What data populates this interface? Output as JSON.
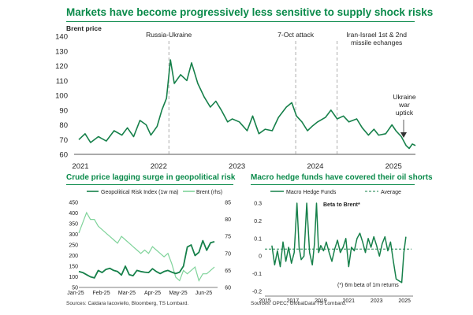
{
  "title": "Markets have become progressively less sensitive to supply shock risks",
  "colors": {
    "dark_green": "#16804a",
    "light_green": "#7fd39a",
    "title_green": "#0a8a4a",
    "avg_line": "#16804a"
  },
  "chart_data": [
    {
      "type": "line",
      "ylabel": "Brent price",
      "ylim": [
        60,
        140
      ],
      "yticks": [
        "60",
        "70",
        "80",
        "90",
        "100",
        "110",
        "120",
        "130",
        "140"
      ],
      "xlim": [
        2021.0,
        2025.3
      ],
      "xticks": [
        {
          "label": "2021",
          "x": 2021.0
        },
        {
          "label": "2022",
          "x": 2022.0
        },
        {
          "label": "2023",
          "x": 2023.0
        },
        {
          "label": "2024",
          "x": 2024.0
        },
        {
          "label": "2025",
          "x": 2025.0
        }
      ],
      "series": [
        {
          "name": "Brent",
          "points": [
            [
              2021.0,
              70
            ],
            [
              2021.08,
              74
            ],
            [
              2021.15,
              68
            ],
            [
              2021.25,
              72
            ],
            [
              2021.35,
              69
            ],
            [
              2021.45,
              76
            ],
            [
              2021.55,
              73
            ],
            [
              2021.62,
              78
            ],
            [
              2021.7,
              72
            ],
            [
              2021.78,
              83
            ],
            [
              2021.86,
              80
            ],
            [
              2021.92,
              73
            ],
            [
              2022.0,
              79
            ],
            [
              2022.06,
              90
            ],
            [
              2022.12,
              98
            ],
            [
              2022.17,
              124
            ],
            [
              2022.22,
              108
            ],
            [
              2022.3,
              114
            ],
            [
              2022.38,
              110
            ],
            [
              2022.44,
              122
            ],
            [
              2022.52,
              108
            ],
            [
              2022.6,
              99
            ],
            [
              2022.68,
              92
            ],
            [
              2022.75,
              96
            ],
            [
              2022.82,
              90
            ],
            [
              2022.9,
              82
            ],
            [
              2022.96,
              84
            ],
            [
              2023.05,
              82
            ],
            [
              2023.15,
              76
            ],
            [
              2023.22,
              86
            ],
            [
              2023.3,
              74
            ],
            [
              2023.38,
              77
            ],
            [
              2023.47,
              76
            ],
            [
              2023.55,
              85
            ],
            [
              2023.65,
              92
            ],
            [
              2023.72,
              95
            ],
            [
              2023.78,
              86
            ],
            [
              2023.85,
              82
            ],
            [
              2023.92,
              76
            ],
            [
              2023.98,
              79
            ],
            [
              2024.05,
              82
            ],
            [
              2024.15,
              85
            ],
            [
              2024.22,
              90
            ],
            [
              2024.3,
              84
            ],
            [
              2024.38,
              86
            ],
            [
              2024.45,
              82
            ],
            [
              2024.55,
              84
            ],
            [
              2024.62,
              78
            ],
            [
              2024.7,
              73
            ],
            [
              2024.77,
              77
            ],
            [
              2024.83,
              73
            ],
            [
              2024.92,
              74
            ],
            [
              2025.0,
              80
            ],
            [
              2025.05,
              76
            ],
            [
              2025.12,
              72
            ],
            [
              2025.18,
              66
            ],
            [
              2025.22,
              64
            ],
            [
              2025.26,
              67
            ],
            [
              2025.3,
              66
            ]
          ]
        }
      ],
      "annotations": [
        {
          "label": "Russia-Ukraine",
          "x": 2022.15
        },
        {
          "label": "7-Oct attack",
          "x": 2023.77
        },
        {
          "label": "Iran-Israel 1st & 2nd",
          "label2": "missile echanges",
          "x": 2024.3
        }
      ],
      "callout": {
        "lines": [
          "Ukraine",
          "war",
          "uptick"
        ]
      }
    },
    {
      "type": "line",
      "title": "Crude price lagging surge in geopolitical risk",
      "ylim_left": [
        50,
        450
      ],
      "ylim_right": [
        60,
        85
      ],
      "yticks_left": [
        "50",
        "100",
        "150",
        "200",
        "250",
        "300",
        "350",
        "400",
        "450"
      ],
      "yticks_right": [
        "60",
        "65",
        "70",
        "75",
        "80",
        "85"
      ],
      "xticks": [
        "Jan-25",
        "Feb-25",
        "Mar-25",
        "Apr-25",
        "May-25",
        "Jun-25"
      ],
      "legend": [
        "Geopolitical Risk Index (1w ma)",
        "Brent (rhs)"
      ],
      "series": [
        {
          "name": "Geopolitical Risk Index (1w ma)",
          "axis": "left",
          "values": [
            125,
            120,
            110,
            100,
            95,
            130,
            120,
            135,
            140,
            130,
            125,
            108,
            150,
            110,
            105,
            130,
            125,
            122,
            120,
            138,
            125,
            115,
            125,
            130,
            122,
            115,
            122,
            150,
            240,
            250,
            200,
            215,
            270,
            225,
            260,
            265
          ]
        },
        {
          "name": "Brent (rhs)",
          "axis": "right",
          "values": [
            76,
            79,
            82,
            80,
            80,
            78,
            77,
            76,
            75,
            74,
            73,
            75,
            74,
            73,
            72,
            71,
            70,
            71,
            70,
            72,
            71,
            70,
            69,
            70,
            67,
            63,
            62,
            65,
            64,
            65,
            66,
            62,
            64,
            64,
            65,
            66
          ]
        }
      ]
    },
    {
      "type": "line",
      "title": "Macro hedge funds have covered their oil shorts",
      "ylim": [
        -0.2,
        0.3
      ],
      "yticks": [
        "-0.2",
        "-0.1",
        "0",
        "0.1",
        "0.2",
        "0.3"
      ],
      "xlim": [
        2015,
        2025.5
      ],
      "xticks": [
        "2015",
        "2017",
        "2019",
        "2021",
        "2023",
        "2025"
      ],
      "legend": [
        "Macro Hedge Funds",
        "Average"
      ],
      "average": 0.04,
      "inner_label": "Beta to Brent*",
      "note": "(*) 6m beta of 1m returns",
      "series": [
        {
          "name": "Macro Hedge Funds",
          "points": [
            [
              2015.5,
              0.06
            ],
            [
              2015.7,
              -0.05
            ],
            [
              2015.9,
              0.03
            ],
            [
              2016.1,
              -0.06
            ],
            [
              2016.3,
              0.08
            ],
            [
              2016.5,
              -0.03
            ],
            [
              2016.7,
              0.05
            ],
            [
              2016.9,
              -0.04
            ],
            [
              2017.1,
              0.02
            ],
            [
              2017.3,
              0.3
            ],
            [
              2017.45,
              0.05
            ],
            [
              2017.6,
              -0.02
            ],
            [
              2017.8,
              0.0
            ],
            [
              2018.0,
              0.3
            ],
            [
              2018.2,
              0.02
            ],
            [
              2018.4,
              -0.05
            ],
            [
              2018.55,
              0.07
            ],
            [
              2018.7,
              0.3
            ],
            [
              2018.85,
              0.02
            ],
            [
              2019.0,
              0.06
            ],
            [
              2019.2,
              0.03
            ],
            [
              2019.4,
              0.08
            ],
            [
              2019.6,
              0.02
            ],
            [
              2019.8,
              -0.03
            ],
            [
              2020.0,
              0.04
            ],
            [
              2020.2,
              0.09
            ],
            [
              2020.4,
              0.02
            ],
            [
              2020.6,
              0.05
            ],
            [
              2020.8,
              0.1
            ],
            [
              2021.0,
              -0.06
            ],
            [
              2021.2,
              0.05
            ],
            [
              2021.4,
              0.03
            ],
            [
              2021.6,
              0.1
            ],
            [
              2021.8,
              0.13
            ],
            [
              2022.0,
              0.08
            ],
            [
              2022.2,
              0.02
            ],
            [
              2022.4,
              0.1
            ],
            [
              2022.6,
              0.05
            ],
            [
              2022.8,
              0.11
            ],
            [
              2023.0,
              0.06
            ],
            [
              2023.2,
              0.0
            ],
            [
              2023.4,
              0.07
            ],
            [
              2023.6,
              0.11
            ],
            [
              2023.8,
              0.03
            ],
            [
              2024.0,
              0.08
            ],
            [
              2024.2,
              -0.03
            ],
            [
              2024.4,
              -0.13
            ],
            [
              2024.6,
              -0.14
            ],
            [
              2024.8,
              -0.15
            ],
            [
              2024.95,
              0.02
            ],
            [
              2025.1,
              0.11
            ]
          ]
        }
      ]
    }
  ],
  "sources": {
    "left": "Sources: Caldara Iacoviello, Bloomberg, TS Lombard.",
    "right": "Sources: OPEC, GlobalData TS Lombard."
  }
}
